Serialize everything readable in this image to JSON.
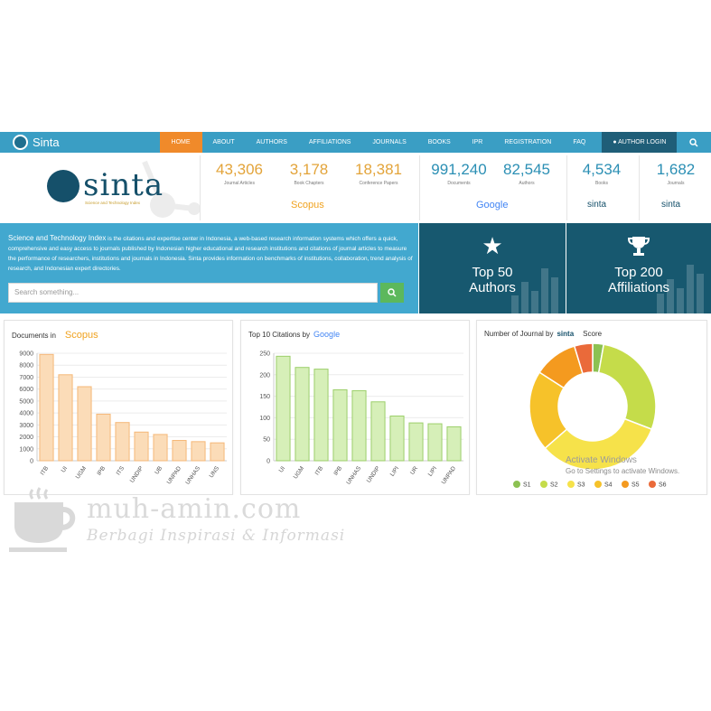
{
  "nav": {
    "brand": "Sinta",
    "items": [
      "HOME",
      "ABOUT",
      "AUTHORS",
      "AFFILIATIONS",
      "JOURNALS",
      "BOOKS",
      "IPR",
      "REGISTRATION",
      "FAQ"
    ],
    "login": "AUTHOR LOGIN",
    "search_icon": "search-icon"
  },
  "logo": {
    "text": "sinta",
    "subtitle": "Science and Technology Index"
  },
  "stats": {
    "scopus": [
      {
        "value": "43,306",
        "label": "Journal Articles"
      },
      {
        "value": "3,178",
        "label": "Book Chapters"
      },
      {
        "value": "18,381",
        "label": "Conference Papers"
      }
    ],
    "scopus_label": "Scopus",
    "google": [
      {
        "value": "991,240",
        "label": "Documents"
      },
      {
        "value": "82,545",
        "label": "Authors"
      }
    ],
    "google_label": "Google",
    "sinta": [
      {
        "value": "4,534",
        "label": "Books"
      },
      {
        "value": "1,682",
        "label": "Journals"
      }
    ],
    "sinta_label": "sinta"
  },
  "info": {
    "heading": "Science and Technology Index",
    "body": " is the citations and expertise center in Indonesia, a web-based research information systems which offers a quick, comprehensive and easy access to journals published by Indonesian higher educational and research institutions and citations of journal articles to measure the performance of researchers, institutions and journals in Indonesia. Sinta provides information on benchmarks of institutions, collaboration, trend analysis of research, and Indonesian expert directories.",
    "search_placeholder": "Search something..."
  },
  "top_cards": [
    {
      "title_line1": "Top 50",
      "title_line2": "Authors",
      "icon": "star-icon"
    },
    {
      "title_line1": "Top 200",
      "title_line2": "Affiliations",
      "icon": "trophy-icon"
    }
  ],
  "panels": {
    "scopus_title": "Documents in",
    "scopus_brand": "Scopus",
    "google_title": "Top 10 Citations by",
    "google_brand": "Google",
    "journal_title_pre": "Number of Journal by",
    "journal_brand": "sinta",
    "journal_title_post": "Score"
  },
  "watermark": {
    "line1": "Activate Windows",
    "line2": "Go to Settings to activate Windows."
  },
  "blog": {
    "title": "muh-amin.com",
    "subtitle": "Berbagi Inspirasi & Informasi"
  },
  "colors": {
    "nav": "#3a9ec4",
    "nav_active": "#f08a2a",
    "info_band": "#42a8cf",
    "top_card": "#17586f",
    "scopus_bar": "#fbdcb8",
    "scopus_bar_stroke": "#f5b878",
    "google_bar": "#d6efb8",
    "google_bar_stroke": "#9ccf6a"
  },
  "chart_data": [
    {
      "type": "bar",
      "title": "Documents in Scopus",
      "categories": [
        "ITB",
        "UI",
        "UGM",
        "IPB",
        "ITS",
        "UNDIP",
        "UB",
        "UNPAD",
        "UNHAS",
        "UNS"
      ],
      "values": [
        8900,
        7200,
        6200,
        3900,
        3200,
        2400,
        2200,
        1700,
        1600,
        1500
      ],
      "ylim": [
        0,
        9000
      ],
      "yticks": [
        0,
        1000,
        2000,
        3000,
        4000,
        5000,
        6000,
        7000,
        8000,
        9000
      ],
      "grid": true
    },
    {
      "type": "bar",
      "title": "Top 10 Citations by Google",
      "categories": [
        "UI",
        "UGM",
        "ITB",
        "IPB",
        "UNHAS",
        "UNDIP",
        "LIPI",
        "UR",
        "LIPI",
        "UNPAD"
      ],
      "values": [
        243,
        217,
        213,
        165,
        163,
        137,
        104,
        88,
        86,
        79
      ],
      "ylim": [
        0,
        250
      ],
      "yticks": [
        0,
        50,
        100,
        150,
        200,
        250
      ],
      "grid": true
    },
    {
      "type": "pie",
      "title": "Number of Journal by sinta Score",
      "labels": [
        "S1",
        "S2",
        "S3",
        "S4",
        "S5",
        "S6"
      ],
      "values": [
        3,
        30,
        35,
        22,
        12,
        5
      ],
      "colors": [
        "#8cc152",
        "#c5dc4a",
        "#f6e24a",
        "#f6c22a",
        "#f49a1f",
        "#ea6a3a"
      ],
      "legend": "bottom"
    }
  ]
}
